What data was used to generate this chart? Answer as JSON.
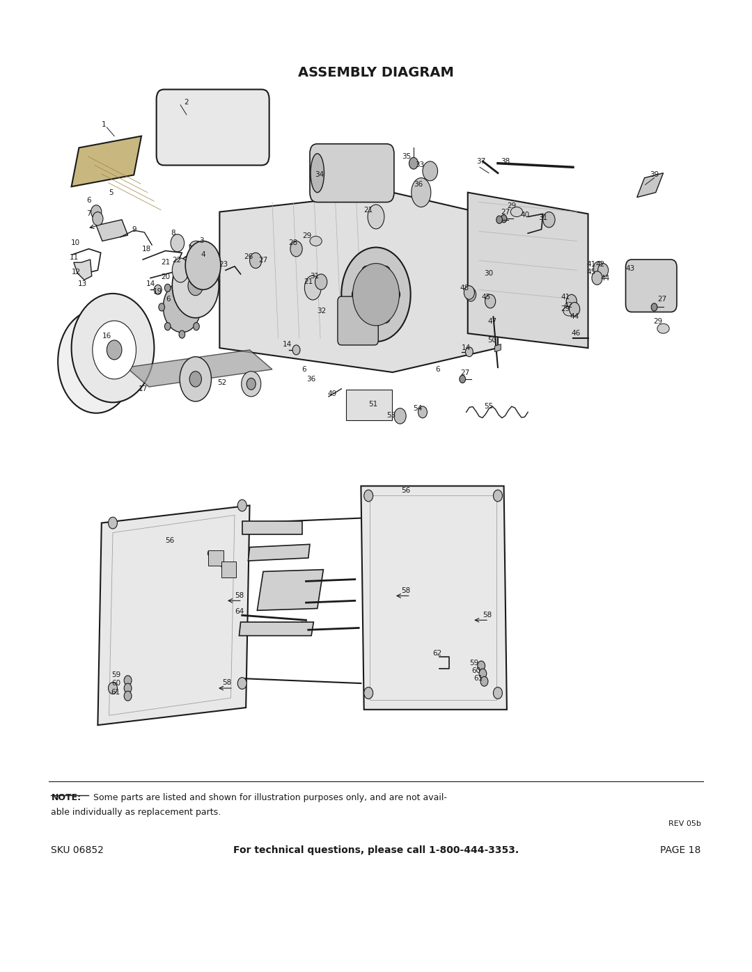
{
  "title": "ASSEMBLY DIAGRAM",
  "title_fontsize": 14,
  "title_fontweight": "bold",
  "background_color": "#ffffff",
  "text_color": "#1a1a1a",
  "page_width": 10.8,
  "page_height": 13.97,
  "note_bold": "NOTE:",
  "note_rest": " Some parts are listed and shown for illustration purposes only, and are not avail-",
  "note_line2": "able individually as replacement parts.",
  "rev_text": "REV 05b",
  "footer_sku": "SKU 06852",
  "footer_center": "For technical questions, please call 1-800-444-3353.",
  "footer_page": "PAGE 18"
}
